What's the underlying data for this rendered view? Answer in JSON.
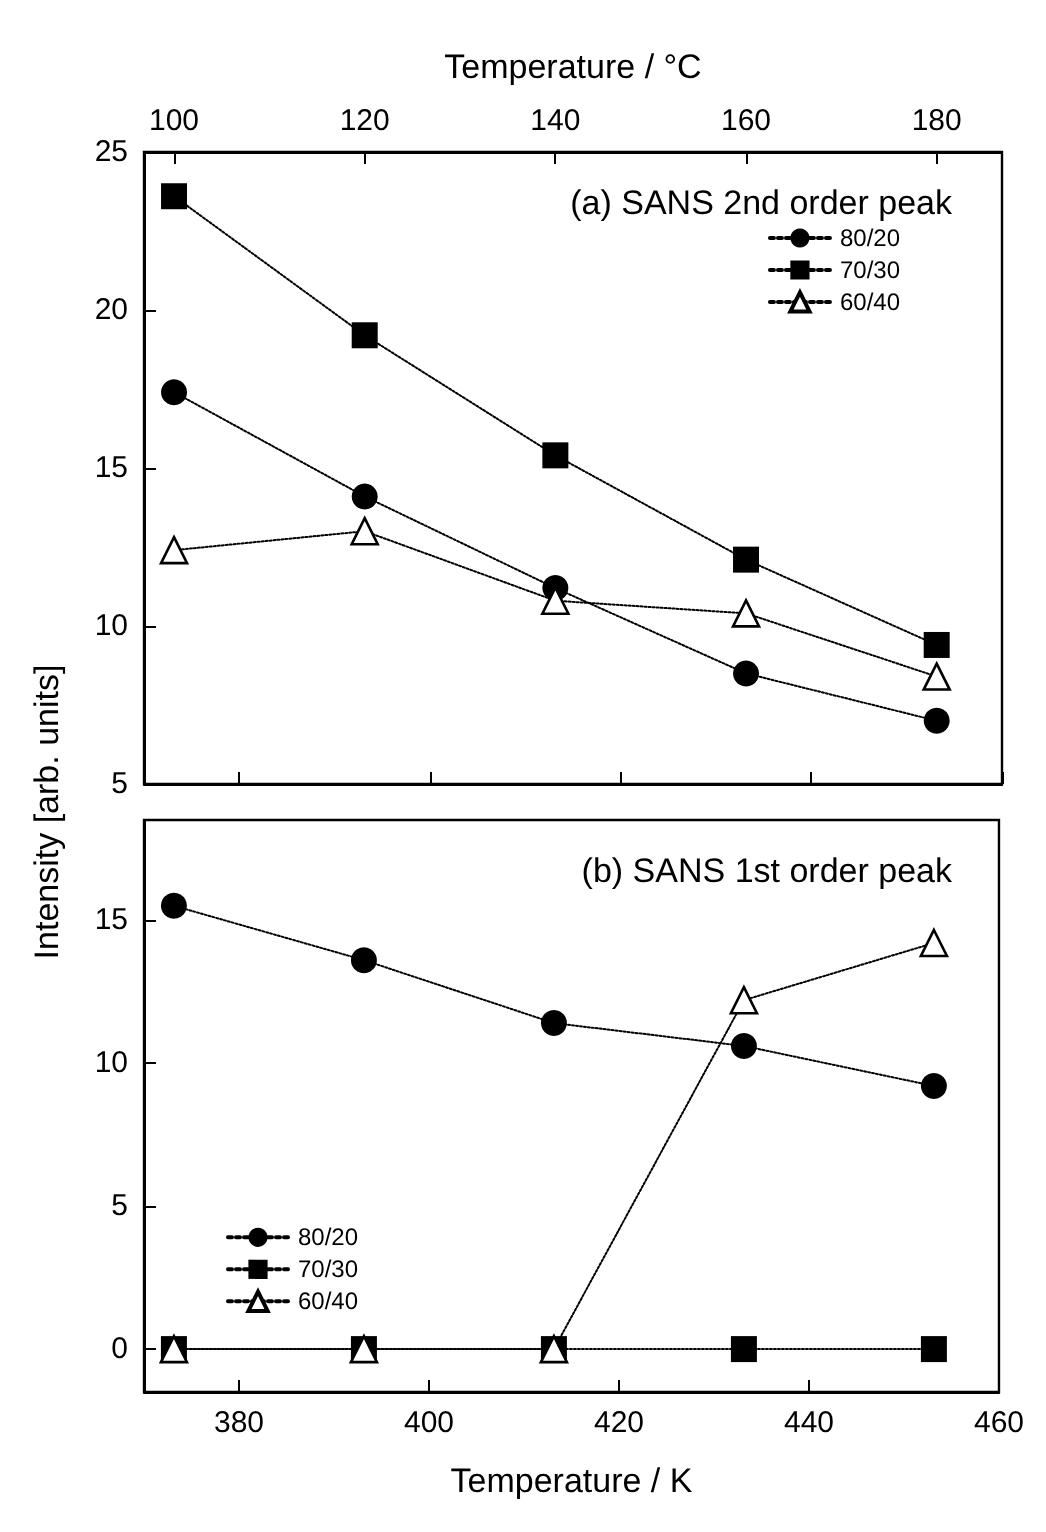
{
  "chart_data": [
    {
      "type": "line",
      "title": "(a) SANS 2nd order peak",
      "x2label": "Temperature / °C",
      "ylabel": "Intensity [arb. units]",
      "xlim": [
        370,
        460
      ],
      "xticks": [
        380,
        400,
        420,
        440,
        460
      ],
      "x2lim": [
        96.85,
        186.85
      ],
      "x2ticks": [
        100,
        120,
        140,
        160,
        180
      ],
      "ylim": [
        5,
        25
      ],
      "yticks": [
        5,
        10,
        15,
        20,
        25
      ],
      "tick_labels": "y",
      "legend": "top right",
      "line_style": "dotted",
      "grid": false,
      "x": [
        373.15,
        393.15,
        413.15,
        433.15,
        453.15
      ],
      "series": [
        {
          "name": "80/20",
          "color": "#000000",
          "marker": "circle",
          "values": [
            17.4,
            14.1,
            11.2,
            8.5,
            7.0
          ]
        },
        {
          "name": "70/30",
          "color": "#000000",
          "marker": "square",
          "values": [
            23.6,
            19.2,
            15.4,
            12.1,
            9.4
          ]
        },
        {
          "name": "60/40",
          "color": "#000000",
          "marker": "triangle",
          "values": [
            12.4,
            13.0,
            10.8,
            10.4,
            8.4
          ]
        }
      ]
    },
    {
      "type": "line",
      "title": "(b) SANS 1st order peak",
      "xlabel": "Temperature / K",
      "xlim": [
        370,
        460
      ],
      "xticks": [
        380,
        400,
        420,
        440,
        460
      ],
      "ylim": [
        -1.5,
        18.5
      ],
      "yticks": [
        0,
        5,
        10,
        15
      ],
      "legend": "left",
      "line_style": "dotted",
      "grid": false,
      "x": [
        373.15,
        393.15,
        413.15,
        433.15,
        453.15
      ],
      "series": [
        {
          "name": "80/20",
          "color": "#000000",
          "marker": "circle",
          "values": [
            15.5,
            13.6,
            11.4,
            10.6,
            9.2
          ]
        },
        {
          "name": "70/30",
          "color": "#000000",
          "marker": "square",
          "values": [
            0,
            0,
            0,
            0,
            0
          ]
        },
        {
          "name": "60/40",
          "color": "#000000",
          "marker": "triangle",
          "values": [
            0,
            0,
            0,
            12.2,
            14.2
          ]
        }
      ]
    }
  ]
}
